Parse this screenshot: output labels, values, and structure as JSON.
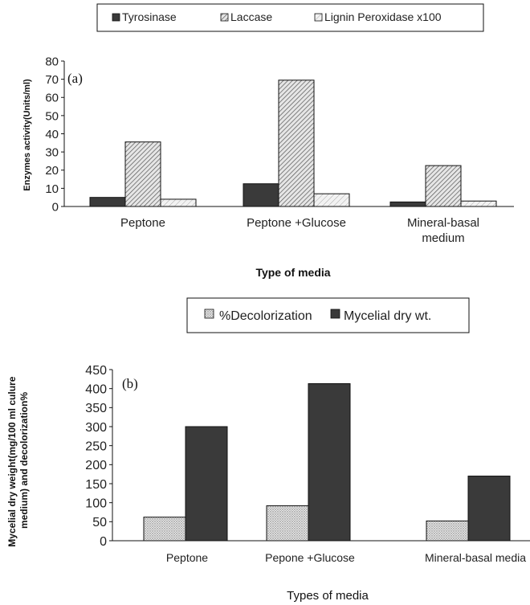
{
  "chart_data": [
    {
      "type": "bar",
      "panel_label": "(a)",
      "categories": [
        "Peptone",
        "Peptone +Glucose",
        "Mineral-basal medium"
      ],
      "series": [
        {
          "name": "Tyrosinase",
          "values": [
            5,
            12.5,
            2.5
          ],
          "fill": "dark"
        },
        {
          "name": "Laccase",
          "values": [
            35.5,
            69.5,
            22.5
          ],
          "fill": "hatch"
        },
        {
          "name": "Lignin Peroxidase x100",
          "values": [
            4,
            7,
            3
          ],
          "fill": "light-hatch"
        }
      ],
      "xlabel": "Type of media",
      "ylabel": "Enzymes activity(Units/ml)",
      "ylim": [
        0,
        80
      ],
      "yticks": [
        0,
        10,
        20,
        30,
        40,
        50,
        60,
        70,
        80
      ],
      "legend": "top",
      "grid": false
    },
    {
      "type": "bar",
      "panel_label": "(b)",
      "categories": [
        "Peptone",
        "Pepone +Glucose",
        "Mineral-basal media"
      ],
      "series": [
        {
          "name": "%Decolorization",
          "values": [
            62,
            92,
            52
          ],
          "fill": "dots"
        },
        {
          "name": "Mycelial dry wt.",
          "values": [
            300,
            413,
            170
          ],
          "fill": "dark"
        }
      ],
      "xlabel": "Types of media",
      "ylabel": "Mycelial dry weight(mg/100 ml culure medium) and decolorization%",
      "ylim": [
        0,
        450
      ],
      "yticks": [
        0,
        50,
        100,
        150,
        200,
        250,
        300,
        350,
        400,
        450
      ],
      "legend": "top",
      "grid": false
    }
  ],
  "colors": {
    "dark": "#3a3a3a",
    "hatch": "#bcbcbc",
    "axis": "#111111"
  }
}
